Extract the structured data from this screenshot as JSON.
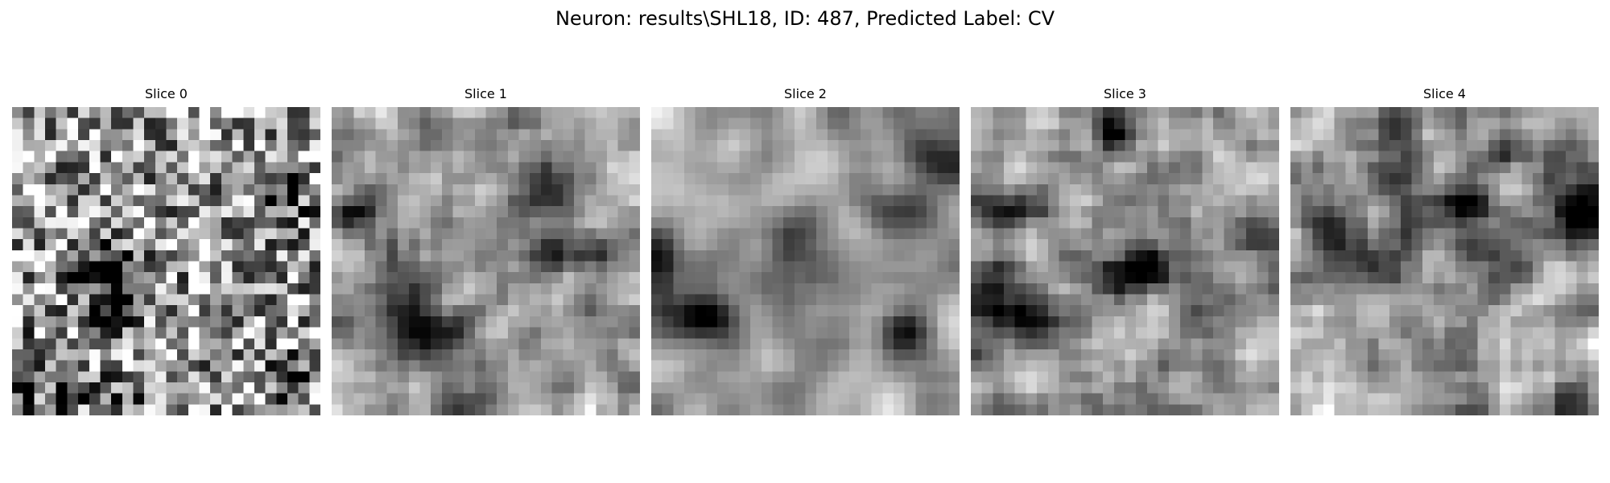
{
  "figure": {
    "title": "Neuron: results\\SHL18, ID: 487, Predicted Label: CV"
  },
  "panels": [
    {
      "title": "Slice 0"
    },
    {
      "title": "Slice 1"
    },
    {
      "title": "Slice 2"
    },
    {
      "title": "Slice 3"
    },
    {
      "title": "Slice 4"
    }
  ],
  "colors": {
    "background": "#ffffff",
    "text": "#000000",
    "colormap": "grayscale"
  }
}
